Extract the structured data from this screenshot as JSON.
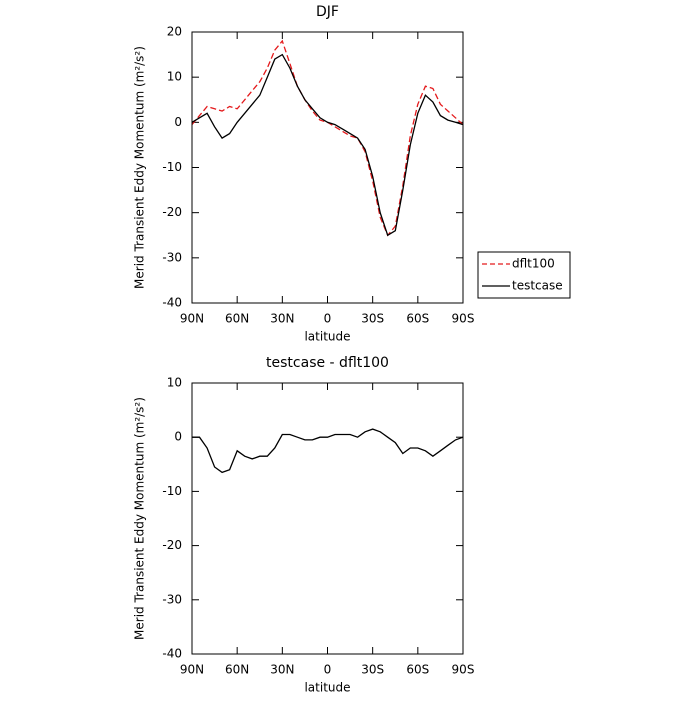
{
  "chart_data": [
    {
      "type": "line",
      "title": "DJF",
      "xlabel": "latitude",
      "ylabel": "Merid Transient Eddy Momentum (m²/s²)",
      "x": [
        90,
        85,
        80,
        75,
        70,
        65,
        60,
        55,
        50,
        45,
        40,
        35,
        30,
        25,
        20,
        15,
        10,
        5,
        0,
        -5,
        -10,
        -15,
        -20,
        -25,
        -30,
        -35,
        -40,
        -45,
        -50,
        -55,
        -60,
        -65,
        -70,
        -75,
        -80,
        -85,
        -90
      ],
      "series": [
        {
          "name": "dflt100",
          "color": "#e41a1c",
          "style": "dashed",
          "values": [
            -0.5,
            1.5,
            3.5,
            3,
            2.5,
            3.5,
            3,
            5,
            7,
            9,
            12,
            16,
            18,
            13,
            8,
            5,
            2.5,
            0.5,
            0,
            -1,
            -2,
            -3,
            -3.5,
            -6.5,
            -13,
            -21,
            -25,
            -23,
            -14,
            -3,
            4,
            8,
            7.5,
            4,
            2.5,
            1,
            -0.5
          ]
        },
        {
          "name": "testcase",
          "color": "#000000",
          "style": "solid",
          "values": [
            0,
            1,
            2,
            -1,
            -3.5,
            -2.5,
            0,
            2,
            4,
            6,
            10,
            14,
            15,
            12,
            8,
            5,
            3,
            1,
            0,
            -0.5,
            -1.5,
            -2.5,
            -3.5,
            -6,
            -12,
            -20,
            -25,
            -24,
            -15,
            -5,
            2,
            6,
            4.5,
            1.5,
            0.5,
            0,
            -0.5
          ]
        }
      ],
      "xlim": [
        90,
        -90
      ],
      "xticks": [
        {
          "value": 90,
          "label": "90N"
        },
        {
          "value": 60,
          "label": "60N"
        },
        {
          "value": 30,
          "label": "30N"
        },
        0,
        {
          "value": -30,
          "label": "30S"
        },
        {
          "value": -60,
          "label": "60S"
        },
        {
          "value": -90,
          "label": "90S"
        }
      ],
      "ylim": [
        -40,
        20
      ],
      "yticks": [
        -40,
        -30,
        -20,
        -10,
        0,
        10,
        20
      ],
      "legend": "right"
    },
    {
      "type": "line",
      "title": "testcase - dflt100",
      "xlabel": "latitude",
      "ylabel": "Merid Transient Eddy Momentum (m²/s²)",
      "x": [
        90,
        85,
        80,
        75,
        70,
        65,
        60,
        55,
        50,
        45,
        40,
        35,
        30,
        25,
        20,
        15,
        10,
        5,
        0,
        -5,
        -10,
        -15,
        -20,
        -25,
        -30,
        -35,
        -40,
        -45,
        -50,
        -55,
        -60,
        -65,
        -70,
        -75,
        -80,
        -85,
        -90
      ],
      "series": [
        {
          "color": "#000000",
          "style": "solid",
          "values": [
            0,
            0,
            -2,
            -5.5,
            -6.5,
            -6,
            -2.5,
            -3.5,
            -4,
            -3.5,
            -3.5,
            -2,
            0.5,
            0.5,
            0,
            -0.5,
            -0.5,
            0,
            0,
            0.5,
            0.5,
            0.5,
            0,
            1,
            1.5,
            1,
            0,
            -1,
            -3,
            -2,
            -2,
            -2.5,
            -3.5,
            -2.5,
            -1.5,
            -0.5,
            0
          ]
        }
      ],
      "xlim": [
        90,
        -90
      ],
      "xticks": [
        {
          "value": 90,
          "label": "90N"
        },
        {
          "value": 60,
          "label": "60N"
        },
        {
          "value": 30,
          "label": "30N"
        },
        0,
        {
          "value": -30,
          "label": "30S"
        },
        {
          "value": -60,
          "label": "60S"
        },
        {
          "value": -90,
          "label": "90S"
        }
      ],
      "ylim": [
        -40,
        10
      ],
      "yticks": [
        -40,
        -30,
        -20,
        -10,
        0,
        10
      ]
    }
  ]
}
